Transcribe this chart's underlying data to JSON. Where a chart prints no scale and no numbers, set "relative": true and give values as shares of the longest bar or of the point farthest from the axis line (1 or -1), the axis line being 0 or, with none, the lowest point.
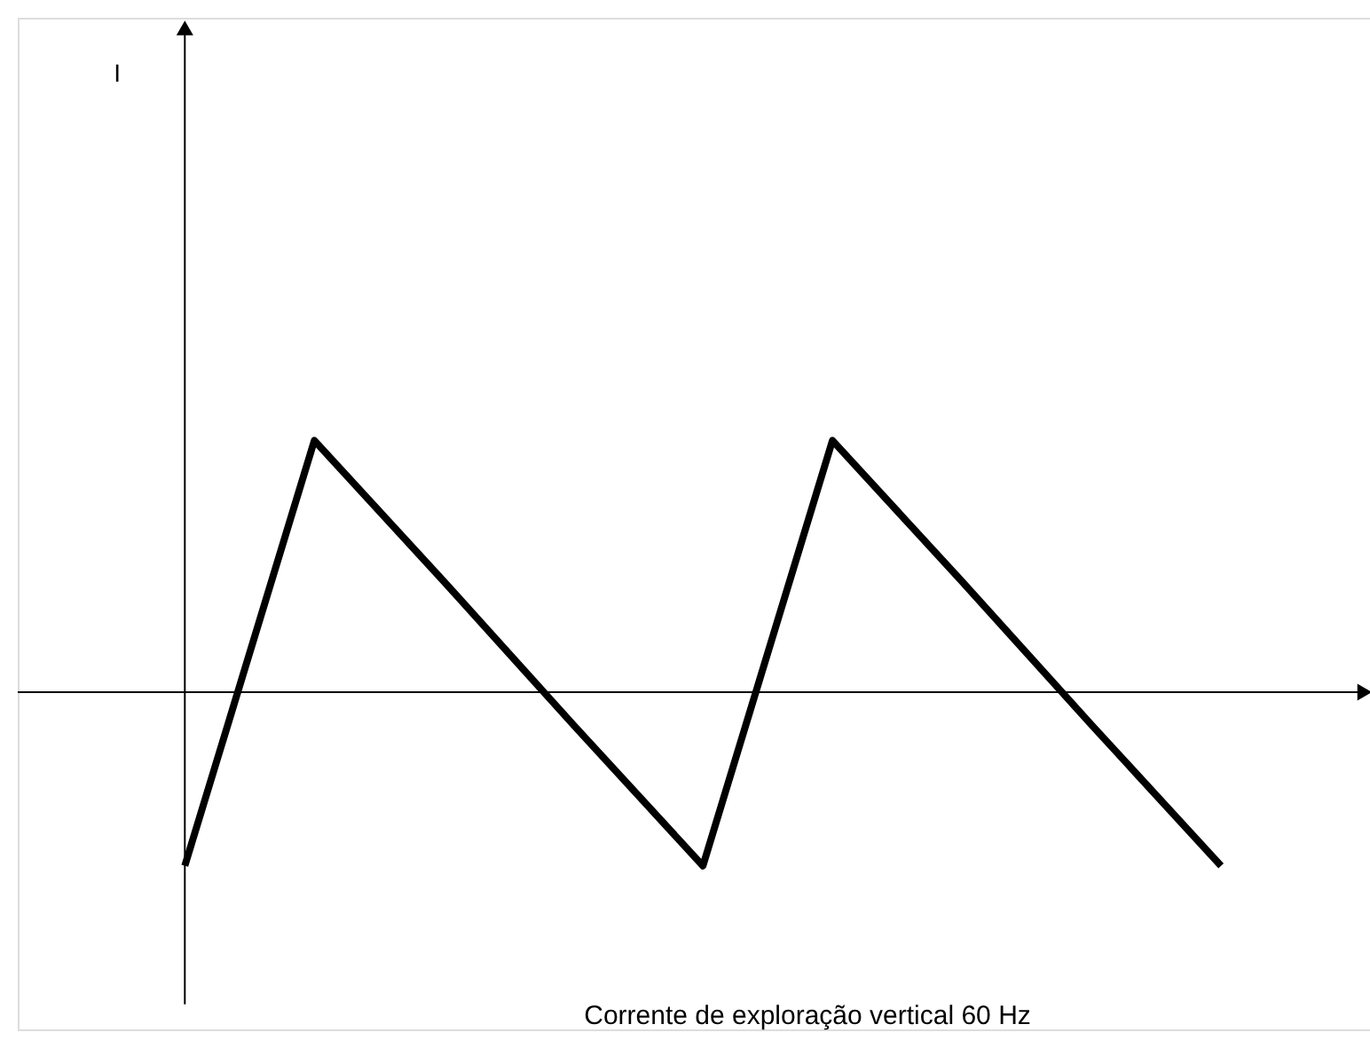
{
  "chart_data": {
    "type": "line",
    "relative": true,
    "annotations": [
      "I",
      "Corrente de exploração vertical  60 Hz"
    ],
    "categories": [
      null,
      null,
      null,
      null,
      null,
      null,
      null,
      null,
      null
    ],
    "tick_labels": false,
    "grid": false,
    "marker": "none",
    "line_style": "solid",
    "series": [
      {
        "color": "#000000",
        "values": [
          -0.69,
          1,
          0.44,
          -0.13,
          -0.69,
          1,
          0.44,
          -0.13,
          -0.69
        ]
      }
    ]
  }
}
